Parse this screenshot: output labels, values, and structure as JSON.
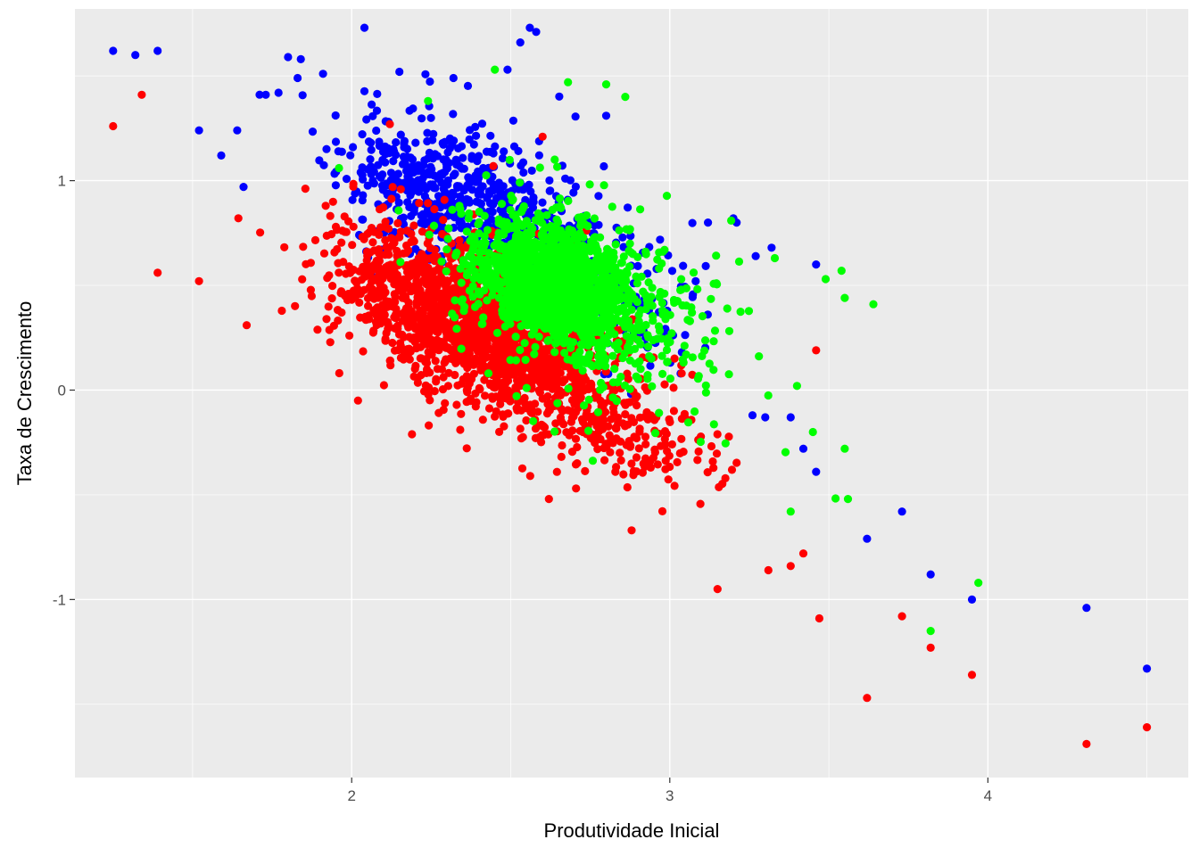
{
  "chart_data": {
    "type": "scatter",
    "title": "",
    "xlabel": "Produtividade Inicial",
    "ylabel": "Taxa de Crescimento",
    "xlim": [
      1.13,
      4.63
    ],
    "ylim": [
      -1.85,
      1.82
    ],
    "x_ticks": [
      2,
      3,
      4
    ],
    "x_tick_labels": [
      "2",
      "3",
      "4"
    ],
    "y_ticks": [
      -1,
      0,
      1
    ],
    "y_tick_labels": [
      "-1",
      "0",
      "1"
    ],
    "grid": true,
    "legend": "none",
    "colors": {
      "panel": "#ebebeb",
      "grid": "#ffffff"
    },
    "series": [
      {
        "color": "#0000ff",
        "outliers": [
          [
            1.25,
            1.62
          ],
          [
            1.32,
            1.6
          ],
          [
            1.39,
            1.62
          ],
          [
            1.52,
            1.24
          ],
          [
            1.59,
            1.12
          ],
          [
            1.64,
            1.24
          ],
          [
            1.66,
            0.97
          ],
          [
            1.73,
            1.41
          ],
          [
            1.77,
            1.42
          ],
          [
            1.8,
            1.59
          ],
          [
            1.84,
            1.58
          ],
          [
            1.83,
            1.49
          ],
          [
            1.91,
            1.51
          ],
          [
            2.04,
            1.73
          ],
          [
            2.15,
            1.52
          ],
          [
            2.32,
            1.49
          ],
          [
            2.49,
            1.53
          ],
          [
            2.53,
            1.66
          ],
          [
            2.56,
            1.73
          ],
          [
            2.58,
            1.71
          ],
          [
            2.8,
            1.31
          ],
          [
            3.12,
            0.8
          ],
          [
            3.2,
            0.82
          ],
          [
            3.21,
            0.8
          ],
          [
            3.27,
            0.64
          ],
          [
            3.32,
            0.68
          ],
          [
            3.46,
            0.6
          ],
          [
            3.26,
            -0.12
          ],
          [
            3.3,
            -0.13
          ],
          [
            3.38,
            -0.13
          ],
          [
            3.42,
            -0.28
          ],
          [
            3.46,
            -0.39
          ],
          [
            3.62,
            -0.71
          ],
          [
            3.73,
            -0.58
          ],
          [
            3.82,
            -0.88
          ],
          [
            3.95,
            -1.0
          ],
          [
            4.31,
            -1.04
          ],
          [
            4.5,
            -1.33
          ]
        ],
        "clouds": [
          {
            "n": 520,
            "cx": 2.3,
            "cy": 0.95,
            "sx": 0.17,
            "sy": 0.18,
            "r": -0.35,
            "seed": 11
          },
          {
            "n": 240,
            "cx": 2.72,
            "cy": 0.55,
            "sx": 0.17,
            "sy": 0.2,
            "r": -0.5,
            "seed": 12
          }
        ]
      },
      {
        "color": "#ff0000",
        "outliers": [
          [
            1.25,
            1.26
          ],
          [
            1.34,
            1.41
          ],
          [
            1.39,
            0.56
          ],
          [
            1.52,
            0.52
          ],
          [
            1.67,
            0.31
          ],
          [
            2.02,
            -0.05
          ],
          [
            2.62,
            -0.52
          ],
          [
            2.88,
            -0.67
          ],
          [
            3.15,
            -0.95
          ],
          [
            3.31,
            -0.86
          ],
          [
            3.38,
            -0.84
          ],
          [
            3.42,
            -0.78
          ],
          [
            3.47,
            -1.09
          ],
          [
            3.62,
            -1.47
          ],
          [
            3.73,
            -1.08
          ],
          [
            3.82,
            -1.23
          ],
          [
            3.95,
            -1.36
          ],
          [
            4.31,
            -1.69
          ],
          [
            4.5,
            -1.61
          ],
          [
            3.46,
            0.19
          ],
          [
            2.6,
            1.21
          ],
          [
            2.12,
            1.27
          ]
        ],
        "clouds": [
          {
            "n": 1600,
            "cx": 2.42,
            "cy": 0.3,
            "sx": 0.2,
            "sy": 0.21,
            "r": -0.45,
            "seed": 21
          },
          {
            "n": 140,
            "cx": 2.08,
            "cy": 0.58,
            "sx": 0.14,
            "sy": 0.15,
            "r": -0.3,
            "seed": 22
          },
          {
            "n": 220,
            "cx": 2.8,
            "cy": -0.18,
            "sx": 0.17,
            "sy": 0.15,
            "r": -0.5,
            "seed": 23
          }
        ]
      },
      {
        "color": "#00ff00",
        "outliers": [
          [
            2.45,
            1.53
          ],
          [
            2.68,
            1.47
          ],
          [
            2.8,
            1.46
          ],
          [
            2.86,
            1.4
          ],
          [
            2.24,
            1.38
          ],
          [
            3.33,
            0.63
          ],
          [
            3.49,
            0.53
          ],
          [
            3.54,
            0.57
          ],
          [
            3.55,
            0.44
          ],
          [
            3.64,
            0.41
          ],
          [
            3.45,
            -0.2
          ],
          [
            3.55,
            -0.28
          ],
          [
            3.56,
            -0.52
          ],
          [
            3.38,
            -0.58
          ],
          [
            3.82,
            -1.15
          ],
          [
            3.97,
            -0.92
          ],
          [
            3.4,
            0.02
          ],
          [
            2.55,
            0.01
          ],
          [
            2.43,
            0.08
          ],
          [
            1.96,
            1.06
          ]
        ],
        "clouds": [
          {
            "n": 1500,
            "cx": 2.64,
            "cy": 0.5,
            "sx": 0.12,
            "sy": 0.14,
            "r": -0.3,
            "seed": 31
          },
          {
            "n": 360,
            "cx": 2.78,
            "cy": 0.42,
            "sx": 0.2,
            "sy": 0.26,
            "r": -0.4,
            "seed": 32
          }
        ]
      }
    ]
  }
}
